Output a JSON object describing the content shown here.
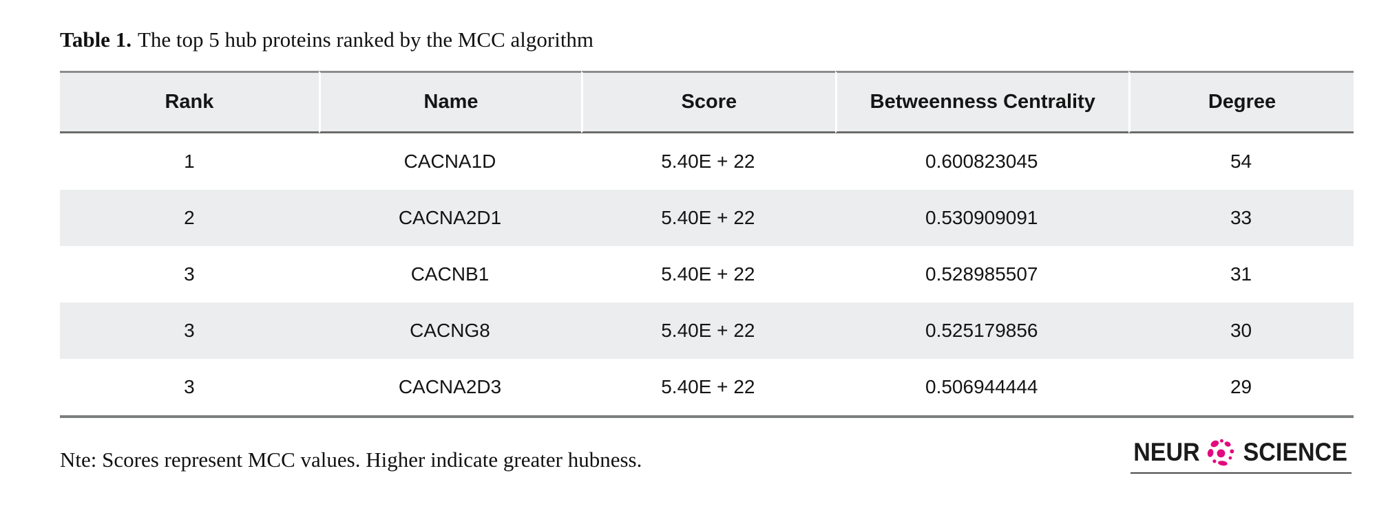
{
  "caption": {
    "label": "Table 1.",
    "text": "The top 5 hub proteins ranked by the MCC algorithm"
  },
  "table": {
    "columns": [
      "Rank",
      "Name",
      "Score",
      "Betweenness Centrality",
      "Degree"
    ],
    "rows": [
      [
        "1",
        "CACNA1D",
        "5.40E + 22",
        "0.600823045",
        "54"
      ],
      [
        "2",
        "CACNA2D1",
        "5.40E + 22",
        "0.530909091",
        "33"
      ],
      [
        "3",
        "CACNB1",
        "5.40E + 22",
        "0.528985507",
        "31"
      ],
      [
        "3",
        "CACNG8",
        "5.40E + 22",
        "0.525179856",
        "30"
      ],
      [
        "3",
        "CACNA2D3",
        "5.40E + 22",
        "0.506944444",
        "29"
      ]
    ]
  },
  "note": "Nte: Scores represent MCC values. Higher indicate greater hubness.",
  "logo": {
    "prefix": "NEUR",
    "suffix": "SCIENCE",
    "icon": "neuroscience-cell-icon"
  },
  "colors": {
    "accent": "#e20a7e",
    "header_bg": "#ebedee",
    "row_alt_bg": "#ebedee",
    "border_top": "#8b8b8b",
    "border_header": "#6a6a6a",
    "border_bottom": "#7b7f7f",
    "logo_text": "#1b1b1b",
    "logo_underline": "#4a4a4a"
  }
}
